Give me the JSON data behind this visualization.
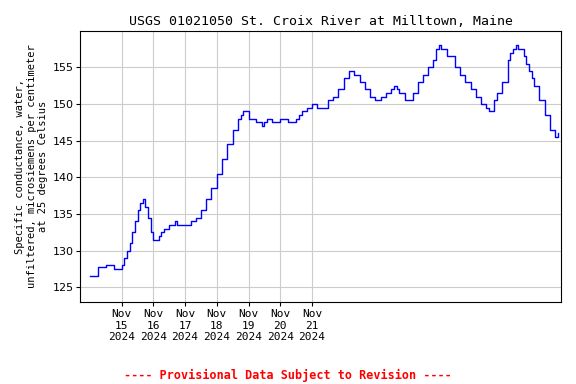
{
  "title": "USGS 01021050 St. Croix River at Milltown, Maine",
  "ylabel": "Specific conductance, water,\nunfiltered, microsiemens per centimeter\nat 25 degrees Celsius",
  "provisional_text": "---- Provisional Data Subject to Revision ----",
  "line_color": "blue",
  "provisional_color": "red",
  "bg_color": "white",
  "grid_color": "#cccccc",
  "ylim": [
    123,
    160
  ],
  "yticks": [
    125,
    130,
    135,
    140,
    145,
    150,
    155
  ],
  "title_fontsize": 9.5,
  "label_fontsize": 7.5,
  "tick_fontsize": 8,
  "provisional_fontsize": 8.5,
  "data": [
    [
      0.0,
      126.5
    ],
    [
      0.25,
      127.8
    ],
    [
      0.5,
      128.0
    ],
    [
      0.75,
      127.5
    ],
    [
      1.0,
      128.0
    ],
    [
      1.08,
      129.0
    ],
    [
      1.17,
      130.0
    ],
    [
      1.25,
      131.0
    ],
    [
      1.33,
      132.5
    ],
    [
      1.42,
      134.0
    ],
    [
      1.5,
      135.5
    ],
    [
      1.58,
      136.5
    ],
    [
      1.67,
      137.0
    ],
    [
      1.75,
      136.0
    ],
    [
      1.83,
      134.5
    ],
    [
      1.92,
      132.5
    ],
    [
      2.0,
      131.5
    ],
    [
      2.08,
      131.5
    ],
    [
      2.17,
      132.0
    ],
    [
      2.25,
      132.5
    ],
    [
      2.33,
      133.0
    ],
    [
      2.5,
      133.5
    ],
    [
      2.67,
      134.0
    ],
    [
      2.75,
      133.5
    ],
    [
      3.0,
      133.5
    ],
    [
      3.17,
      134.0
    ],
    [
      3.33,
      134.5
    ],
    [
      3.5,
      135.5
    ],
    [
      3.67,
      137.0
    ],
    [
      3.83,
      138.5
    ],
    [
      4.0,
      140.5
    ],
    [
      4.17,
      142.5
    ],
    [
      4.33,
      144.5
    ],
    [
      4.5,
      146.5
    ],
    [
      4.67,
      148.0
    ],
    [
      4.75,
      148.5
    ],
    [
      4.83,
      149.0
    ],
    [
      4.92,
      149.0
    ],
    [
      5.0,
      148.0
    ],
    [
      5.08,
      148.0
    ],
    [
      5.17,
      148.0
    ],
    [
      5.25,
      147.5
    ],
    [
      5.33,
      147.5
    ],
    [
      5.42,
      147.0
    ],
    [
      5.5,
      147.5
    ],
    [
      5.58,
      148.0
    ],
    [
      5.75,
      147.5
    ],
    [
      6.0,
      148.0
    ],
    [
      6.17,
      148.0
    ],
    [
      6.25,
      147.5
    ],
    [
      6.5,
      148.0
    ],
    [
      6.58,
      148.5
    ],
    [
      6.67,
      149.0
    ],
    [
      6.83,
      149.5
    ],
    [
      7.0,
      150.0
    ],
    [
      7.17,
      149.5
    ],
    [
      7.33,
      149.5
    ],
    [
      7.5,
      150.5
    ],
    [
      7.67,
      151.0
    ],
    [
      7.83,
      152.0
    ],
    [
      8.0,
      153.5
    ],
    [
      8.17,
      154.5
    ],
    [
      8.25,
      154.5
    ],
    [
      8.33,
      154.0
    ],
    [
      8.5,
      153.0
    ],
    [
      8.67,
      152.0
    ],
    [
      8.83,
      151.0
    ],
    [
      9.0,
      150.5
    ],
    [
      9.08,
      150.5
    ],
    [
      9.17,
      151.0
    ],
    [
      9.33,
      151.5
    ],
    [
      9.5,
      152.0
    ],
    [
      9.58,
      152.5
    ],
    [
      9.67,
      152.0
    ],
    [
      9.75,
      151.5
    ],
    [
      9.92,
      150.5
    ],
    [
      10.0,
      150.5
    ],
    [
      10.17,
      151.5
    ],
    [
      10.33,
      153.0
    ],
    [
      10.5,
      154.0
    ],
    [
      10.67,
      155.0
    ],
    [
      10.83,
      156.0
    ],
    [
      10.92,
      157.5
    ],
    [
      11.0,
      158.0
    ],
    [
      11.08,
      157.5
    ],
    [
      11.25,
      156.5
    ],
    [
      11.5,
      155.0
    ],
    [
      11.67,
      154.0
    ],
    [
      11.83,
      153.0
    ],
    [
      12.0,
      152.0
    ],
    [
      12.17,
      151.0
    ],
    [
      12.33,
      150.0
    ],
    [
      12.5,
      149.5
    ],
    [
      12.58,
      149.0
    ],
    [
      12.75,
      150.5
    ],
    [
      12.83,
      151.5
    ],
    [
      13.0,
      153.0
    ],
    [
      13.17,
      156.0
    ],
    [
      13.25,
      157.0
    ],
    [
      13.33,
      157.5
    ],
    [
      13.42,
      158.0
    ],
    [
      13.5,
      157.5
    ],
    [
      13.67,
      156.5
    ],
    [
      13.75,
      155.5
    ],
    [
      13.83,
      154.5
    ],
    [
      13.92,
      153.5
    ],
    [
      14.0,
      152.5
    ],
    [
      14.17,
      150.5
    ],
    [
      14.33,
      148.5
    ],
    [
      14.5,
      146.5
    ],
    [
      14.67,
      145.5
    ],
    [
      14.75,
      146.0
    ]
  ],
  "xlim": [
    -0.3,
    14.85
  ],
  "xtick_positions": [
    1,
    2,
    3,
    4,
    5,
    6,
    7
  ],
  "xtick_labels": [
    "Nov\n15\n2024",
    "Nov\n16\n2024",
    "Nov\n17\n2024",
    "Nov\n18\n2024",
    "Nov\n19\n2024",
    "Nov\n20\n2024",
    "Nov\n21\n2024"
  ]
}
